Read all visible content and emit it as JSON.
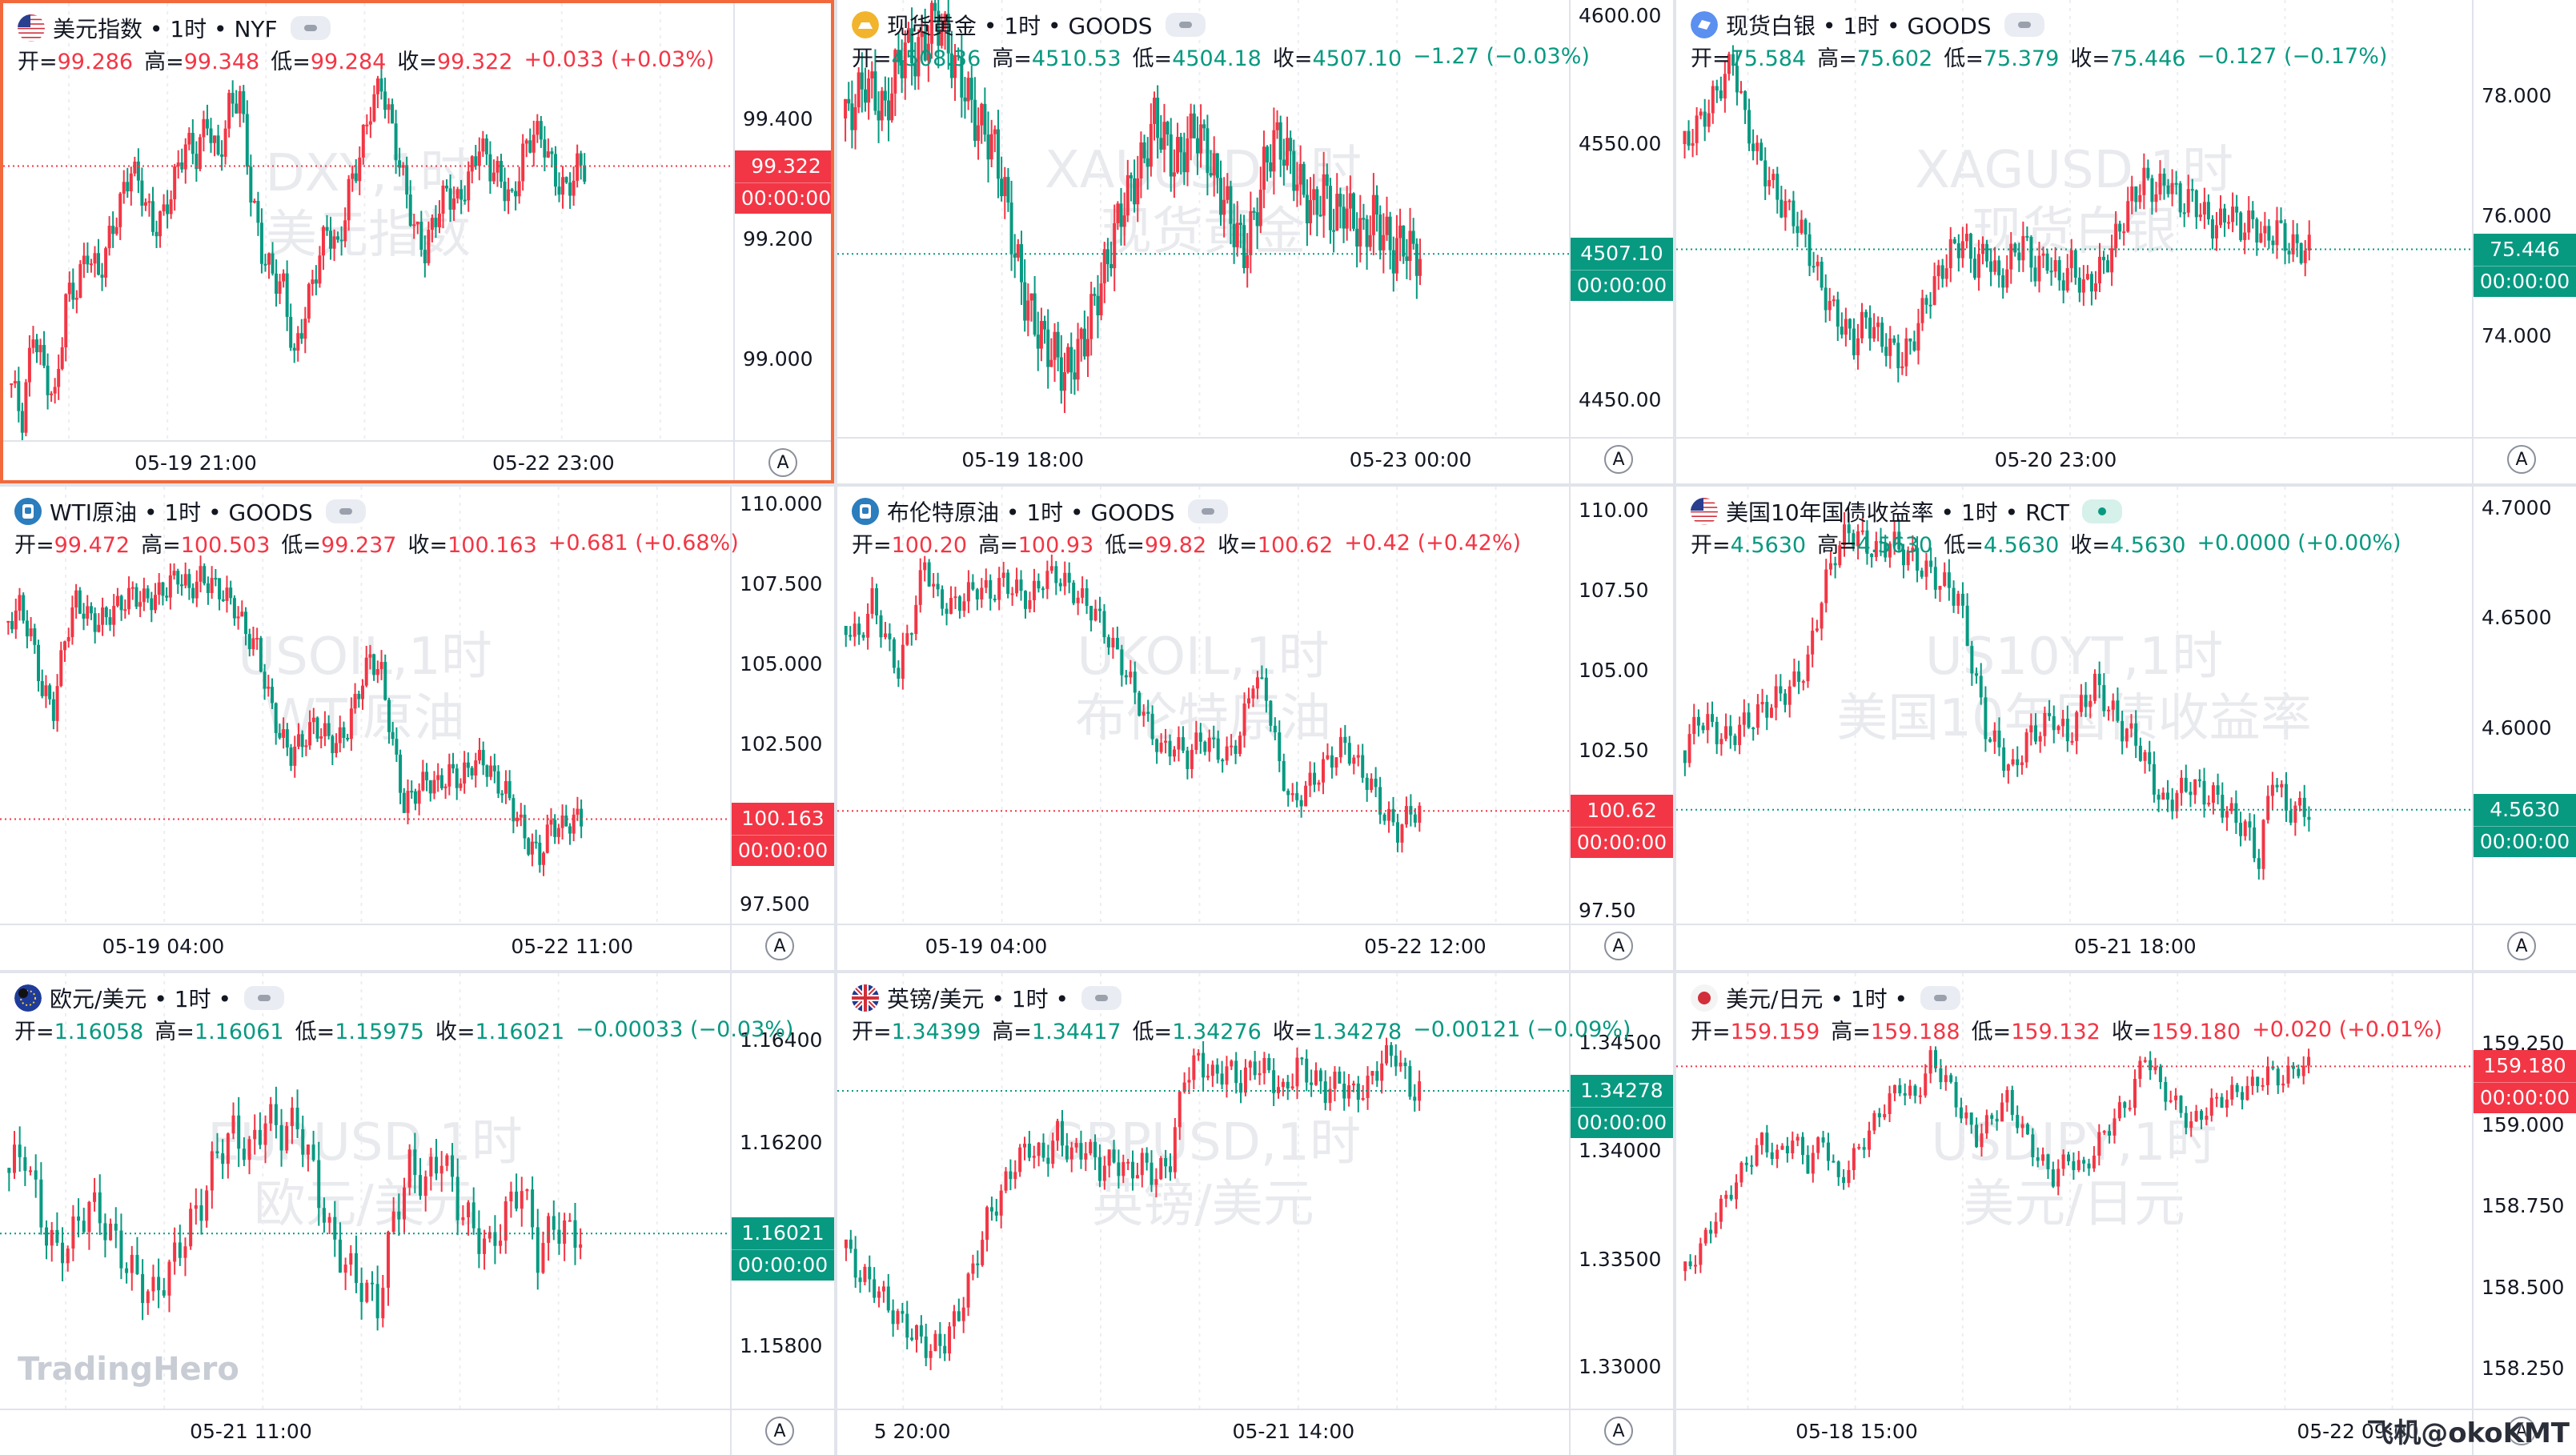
{
  "brand_watermark": "TradingHero",
  "credit": "飞机@okoKMT",
  "timezone_button": "A",
  "time_label": "00:00:00",
  "colors": {
    "up": "#f23645",
    "down": "#089981",
    "active_border": "#f2693c"
  },
  "panels": [
    {
      "title": "美元指数 • 1时 • NYF",
      "icon": "us-flag-icon",
      "status": "closed",
      "o": "99.286",
      "h": "99.348",
      "l": "99.284",
      "c": "99.322",
      "chg": "+0.033 (+0.03%)",
      "dir": "up",
      "wm1": "DXY,1时",
      "wm2": "美元指数",
      "yticks": [
        "99.400",
        "99.200",
        "99.000"
      ],
      "xticks": [
        "05-19 21:00",
        "05-22 23:00"
      ],
      "last": "99.322",
      "active": true,
      "series": [
        98.96,
        98.9,
        99.05,
        98.98,
        98.93,
        99.1,
        99.12,
        99.18,
        99.14,
        99.2,
        99.26,
        99.32,
        99.28,
        99.22,
        99.24,
        99.3,
        99.36,
        99.34,
        99.4,
        99.33,
        99.42,
        99.44,
        99.28,
        99.18,
        99.14,
        99.12,
        99.0,
        99.08,
        99.15,
        99.22,
        99.18,
        99.28,
        99.34,
        99.42,
        99.46,
        99.38,
        99.3,
        99.22,
        99.18,
        99.24,
        99.28,
        99.26,
        99.3,
        99.36,
        99.32,
        99.3,
        99.26,
        99.34,
        99.38,
        99.36,
        99.3,
        99.28,
        99.32
      ]
    },
    {
      "title": "现货黄金 • 1时 • GOODS",
      "icon": "gold-icon",
      "status": "closed",
      "o": "4508.36",
      "h": "4510.53",
      "l": "4504.18",
      "c": "4507.10",
      "chg": "−1.27 (−0.03%)",
      "dir": "down",
      "wm1": "XAUUSD,1时",
      "wm2": "现货黄金",
      "yticks": [
        "4600.00",
        "4550.00",
        "4450.00"
      ],
      "xticks": [
        "05-19 18:00",
        "05-23 00:00"
      ],
      "last": "4507.10",
      "active": false,
      "series": [
        4560,
        4566,
        4575,
        4568,
        4562,
        4578,
        4588,
        4584,
        4590,
        4600,
        4592,
        4580,
        4572,
        4560,
        4555,
        4548,
        4530,
        4508,
        4490,
        4480,
        4472,
        4468,
        4460,
        4466,
        4474,
        4488,
        4500,
        4515,
        4528,
        4535,
        4545,
        4560,
        4552,
        4542,
        4548,
        4556,
        4550,
        4538,
        4528,
        4518,
        4508,
        4520,
        4540,
        4552,
        4548,
        4540,
        4530,
        4524,
        4532,
        4520,
        4526,
        4520,
        4514,
        4522,
        4515,
        4508,
        4512,
        4507
      ]
    },
    {
      "title": "现货白银 • 1时 • GOODS",
      "icon": "silver-icon",
      "status": "closed",
      "o": "75.584",
      "h": "75.602",
      "l": "75.379",
      "c": "75.446",
      "chg": "−0.127 (−0.17%)",
      "dir": "down",
      "wm1": "XAGUSD,1时",
      "wm2": "现货白银",
      "yticks": [
        "78.000",
        "76.000",
        "74.000"
      ],
      "xticks": [
        "05-20 23:00"
      ],
      "last": "75.446",
      "active": false,
      "series": [
        77.2,
        77.5,
        77.8,
        78.2,
        78.6,
        77.6,
        77.0,
        76.6,
        76.2,
        76.0,
        75.6,
        75.0,
        74.5,
        74.2,
        73.9,
        74.3,
        74.0,
        73.8,
        73.6,
        74.0,
        74.6,
        75.0,
        75.4,
        75.6,
        75.2,
        75.4,
        74.9,
        75.3,
        75.6,
        75.1,
        75.3,
        74.9,
        75.2,
        74.8,
        75.0,
        75.3,
        75.8,
        76.3,
        76.6,
        76.4,
        76.6,
        76.2,
        76.3,
        76.0,
        75.8,
        76.1,
        75.8,
        75.9,
        75.6,
        75.8,
        75.5,
        75.45
      ]
    },
    {
      "title": "WTI原油 • 1时 • GOODS",
      "icon": "oil-icon",
      "status": "closed",
      "o": "99.472",
      "h": "100.503",
      "l": "99.237",
      "c": "100.163",
      "chg": "+0.681 (+0.68%)",
      "dir": "up",
      "wm1": "USOIL,1时",
      "wm2": "WTI原油",
      "yticks": [
        "110.000",
        "107.500",
        "105.000",
        "102.500",
        "97.500"
      ],
      "xticks": [
        "05-19 04:00",
        "05-22 11:00"
      ],
      "last": "100.163",
      "active": false,
      "series": [
        106.3,
        106.8,
        105.9,
        104.2,
        103.6,
        105.8,
        107.0,
        106.5,
        106.3,
        106.6,
        106.9,
        107.2,
        107.0,
        107.1,
        107.4,
        107.8,
        107.3,
        107.7,
        107.5,
        107.2,
        106.8,
        106.0,
        105.5,
        104.0,
        102.8,
        102.2,
        102.6,
        103.1,
        102.8,
        102.5,
        103.0,
        104.2,
        105.2,
        104.7,
        102.5,
        100.6,
        101.0,
        101.4,
        101.2,
        101.6,
        101.4,
        101.9,
        102.0,
        101.4,
        101.0,
        100.2,
        99.4,
        99.0,
        100.0,
        99.9,
        100.16
      ]
    },
    {
      "title": "布伦特原油 • 1时 • GOODS",
      "icon": "oil-icon",
      "status": "closed",
      "o": "100.20",
      "h": "100.93",
      "l": "99.82",
      "c": "100.62",
      "chg": "+0.42 (+0.42%)",
      "dir": "up",
      "wm1": "UKOIL,1时",
      "wm2": "布伦特原油",
      "yticks": [
        "110.00",
        "107.50",
        "105.00",
        "102.50",
        "97.50"
      ],
      "xticks": [
        "05-19 04:00",
        "05-22 12:00"
      ],
      "last": "100.62",
      "active": false,
      "series": [
        106.4,
        106.0,
        107.2,
        106.0,
        105.0,
        106.5,
        108.4,
        107.2,
        107.0,
        107.3,
        107.6,
        107.4,
        107.8,
        107.5,
        107.2,
        107.9,
        108.0,
        107.6,
        107.2,
        106.8,
        106.0,
        105.2,
        104.3,
        103.3,
        102.5,
        102.7,
        102.3,
        102.9,
        102.6,
        102.3,
        103.0,
        104.8,
        104.3,
        102.0,
        100.8,
        101.3,
        101.8,
        102.3,
        102.7,
        102.0,
        101.4,
        100.5,
        100.0,
        100.6
      ]
    },
    {
      "title": "美国10年国债收益率 • 1时 • RCT",
      "icon": "us-flag-icon",
      "status": "live",
      "o": "4.5630",
      "h": "4.5630",
      "l": "4.5630",
      "c": "4.5630",
      "chg": "+0.0000 (+0.00%)",
      "dir": "down",
      "wm1": "US10YT,1时",
      "wm2": "美国10年国债收益率",
      "yticks": [
        "4.7000",
        "4.6500",
        "4.6000"
      ],
      "xticks": [
        "05-21 18:00"
      ],
      "last": "4.5630",
      "active": false,
      "series": [
        4.59,
        4.605,
        4.6,
        4.595,
        4.6,
        4.605,
        4.61,
        4.615,
        4.62,
        4.63,
        4.66,
        4.68,
        4.69,
        4.685,
        4.68,
        4.685,
        4.68,
        4.675,
        4.67,
        4.665,
        4.66,
        4.63,
        4.6,
        4.59,
        4.58,
        4.595,
        4.6,
        4.605,
        4.595,
        4.61,
        4.62,
        4.61,
        4.6,
        4.595,
        4.58,
        4.565,
        4.57,
        4.575,
        4.57,
        4.568,
        4.56,
        4.555,
        4.54,
        4.58,
        4.563,
        4.563
      ]
    },
    {
      "title": "欧元/美元 • 1时 •",
      "icon": "eu-flag-icon",
      "status": "closed",
      "o": "1.16058",
      "h": "1.16061",
      "l": "1.15975",
      "c": "1.16021",
      "chg": "−0.00033 (−0.03%)",
      "dir": "down",
      "wm1": "EURUSD,1时",
      "wm2": "欧元/美元",
      "yticks": [
        "1.16400",
        "1.16200",
        "1.15800"
      ],
      "xticks": [
        "05-21 11:00"
      ],
      "last": "1.16021",
      "active": false,
      "series": [
        1.1615,
        1.1618,
        1.1605,
        1.1598,
        1.1602,
        1.1608,
        1.1604,
        1.1598,
        1.1593,
        1.159,
        1.1595,
        1.1602,
        1.1608,
        1.1618,
        1.1622,
        1.1618,
        1.1625,
        1.1622,
        1.1624,
        1.1614,
        1.1602,
        1.1596,
        1.1592,
        1.1588,
        1.1605,
        1.1615,
        1.1612,
        1.1618,
        1.1608,
        1.1603,
        1.1599,
        1.1606,
        1.1612,
        1.1598,
        1.1604,
        1.1602
      ]
    },
    {
      "title": "英镑/美元 • 1时 •",
      "icon": "uk-flag-icon",
      "status": "closed",
      "o": "1.34399",
      "h": "1.34417",
      "l": "1.34276",
      "c": "1.34278",
      "chg": "−0.00121 (−0.09%)",
      "dir": "down",
      "wm1": "GBPUSD,1时",
      "wm2": "英镑/美元",
      "yticks": [
        "1.34500",
        "1.34000",
        "1.33500",
        "1.33000"
      ],
      "xticks": [
        "5 20:00",
        "05-21 14:00"
      ],
      "last": "1.34278",
      "active": false,
      "series": [
        1.3355,
        1.3342,
        1.3338,
        1.3328,
        1.332,
        1.3314,
        1.3308,
        1.3312,
        1.3325,
        1.3345,
        1.3368,
        1.338,
        1.3395,
        1.3402,
        1.3396,
        1.3408,
        1.3398,
        1.3402,
        1.3392,
        1.3396,
        1.339,
        1.3394,
        1.3388,
        1.3396,
        1.3435,
        1.3442,
        1.3434,
        1.3438,
        1.3432,
        1.344,
        1.3436,
        1.3426,
        1.344,
        1.3434,
        1.3428,
        1.3432,
        1.3426,
        1.343,
        1.3442,
        1.3445,
        1.3428
      ]
    },
    {
      "title": "美元/日元 • 1时 •",
      "icon": "jp-flag-icon",
      "status": "closed",
      "o": "159.159",
      "h": "159.188",
      "l": "159.132",
      "c": "159.180",
      "chg": "+0.020 (+0.01%)",
      "dir": "up",
      "wm1": "USDJPY,1时",
      "wm2": "美元/日元",
      "yticks": [
        "159.250",
        "159.000",
        "158.750",
        "158.500",
        "158.250"
      ],
      "xticks": [
        "05-18 15:00",
        "05-22 09:00"
      ],
      "last": "159.180",
      "active": false,
      "series": [
        158.55,
        158.62,
        158.72,
        158.8,
        158.88,
        158.95,
        158.9,
        158.96,
        158.88,
        158.96,
        158.82,
        158.9,
        158.98,
        159.06,
        159.12,
        159.08,
        159.2,
        159.14,
        159.04,
        158.96,
        159.02,
        159.08,
        158.98,
        158.9,
        158.84,
        158.9,
        158.86,
        158.95,
        159.02,
        159.08,
        159.22,
        159.12,
        159.06,
        159.0,
        159.05,
        159.08,
        159.1,
        159.12,
        159.16,
        159.14,
        159.18
      ]
    }
  ]
}
